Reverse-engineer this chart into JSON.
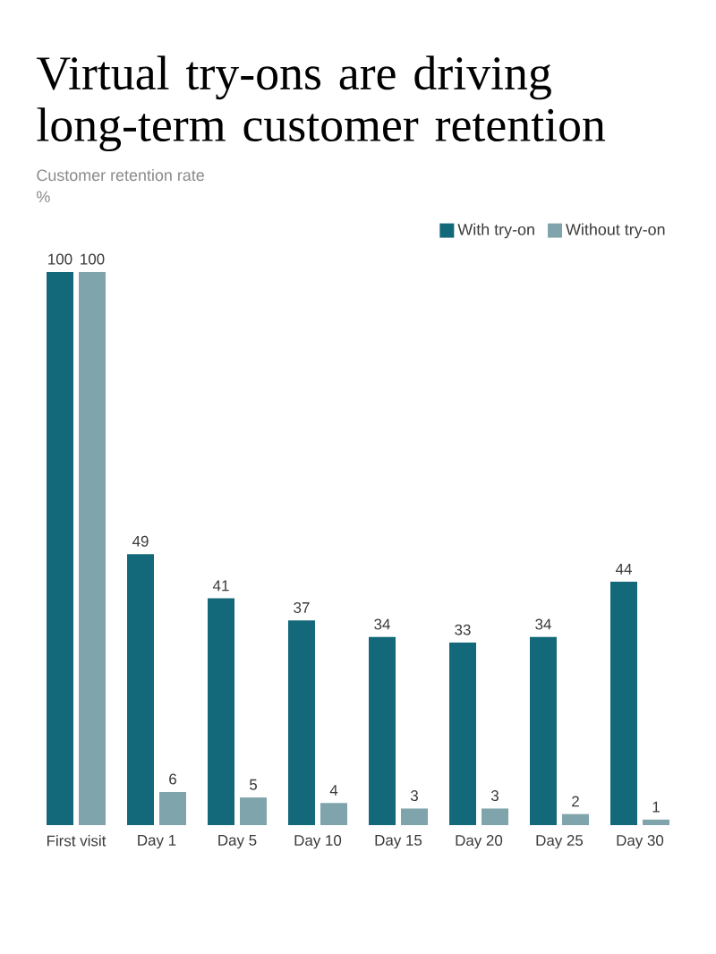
{
  "chart_data": {
    "type": "bar",
    "title": "Virtual try-ons are driving long-term customer retention",
    "subtitle": "Customer retention rate",
    "ylabel": "%",
    "categories": [
      "First visit",
      "Day 1",
      "Day 5",
      "Day 10",
      "Day 15",
      "Day 20",
      "Day 25",
      "Day 30"
    ],
    "series": [
      {
        "name": "With try-on",
        "color": "#13687a",
        "values": [
          100,
          49,
          41,
          37,
          34,
          33,
          34,
          44
        ]
      },
      {
        "name": "Without try-on",
        "color": "#80a4ac",
        "values": [
          100,
          6,
          5,
          4,
          3,
          3,
          2,
          1
        ]
      }
    ],
    "ylim": [
      0,
      100
    ],
    "data_labels": true,
    "legend": "top right",
    "tick_labels": "x"
  }
}
